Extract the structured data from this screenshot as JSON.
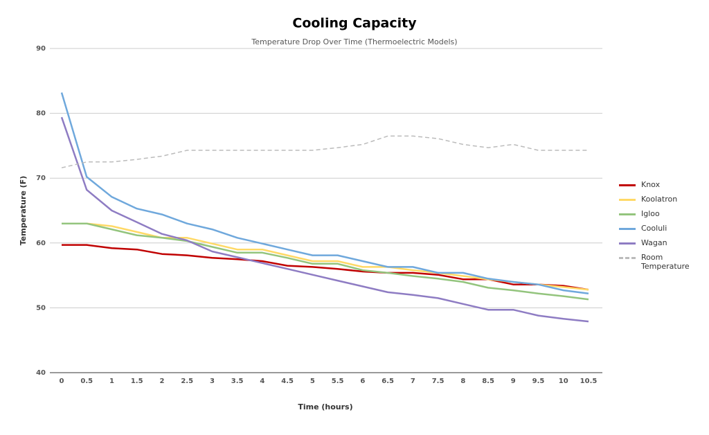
{
  "chart_data": {
    "type": "line",
    "title": "Cooling Capacity",
    "subtitle": "Temperature Drop Over Time  (Thermoelectric Models)",
    "x_label": "Time (hours)",
    "y_label": "Temperature (F)",
    "categories": [
      "0",
      "0.5",
      "1",
      "1.5",
      "2",
      "2.5",
      "3",
      "3.5",
      "4",
      "4.5",
      "5",
      "5.5",
      "6",
      "6.5",
      "7",
      "7.5",
      "8",
      "8.5",
      "9",
      "9.5",
      "10",
      "10.5"
    ],
    "ylim": [
      40,
      90
    ],
    "yticks": [
      40,
      50,
      60,
      70,
      80,
      90
    ],
    "grid": true,
    "legend": "right",
    "series": [
      {
        "name": "Knox",
        "color": "#c00000",
        "dashed": false,
        "values": [
          59.7,
          59.7,
          59.2,
          59.0,
          58.3,
          58.1,
          57.7,
          57.5,
          57.2,
          56.5,
          56.3,
          56.0,
          55.6,
          55.4,
          55.4,
          55.1,
          54.4,
          54.4,
          53.6,
          53.6,
          53.4,
          52.8
        ]
      },
      {
        "name": "Koolatron",
        "color": "#ffd966",
        "dashed": false,
        "values": [
          63.0,
          63.0,
          62.6,
          61.7,
          60.8,
          60.8,
          59.9,
          59.0,
          59.0,
          58.1,
          57.2,
          57.2,
          56.3,
          56.3,
          55.8,
          55.4,
          54.9,
          54.4,
          54.0,
          53.6,
          53.2,
          52.8
        ]
      },
      {
        "name": "Igloo",
        "color": "#93c47d",
        "dashed": false,
        "values": [
          63.0,
          63.0,
          62.1,
          61.2,
          60.8,
          60.3,
          59.4,
          58.5,
          58.5,
          57.7,
          56.8,
          56.8,
          55.8,
          55.4,
          54.9,
          54.5,
          54.0,
          53.1,
          52.7,
          52.2,
          51.8,
          51.3
        ]
      },
      {
        "name": "Cooluli",
        "color": "#6fa8dc",
        "dashed": false,
        "values": [
          83.2,
          70.2,
          67.1,
          65.3,
          64.4,
          63.0,
          62.1,
          60.8,
          59.9,
          59.0,
          58.1,
          58.1,
          57.2,
          56.3,
          56.3,
          55.4,
          55.4,
          54.5,
          54.0,
          53.6,
          52.7,
          52.2
        ]
      },
      {
        "name": "Wagan",
        "color": "#8e7cc3",
        "dashed": false,
        "values": [
          79.4,
          68.2,
          65.0,
          63.2,
          61.4,
          60.4,
          58.7,
          57.8,
          56.9,
          56.0,
          55.1,
          54.2,
          53.3,
          52.4,
          52.0,
          51.5,
          50.6,
          49.7,
          49.7,
          48.8,
          48.3,
          47.9
        ]
      },
      {
        "name": "Room Temperature",
        "color": "#bbbbbb",
        "dashed": true,
        "values": [
          71.6,
          72.5,
          72.5,
          72.9,
          73.4,
          74.3,
          74.3,
          74.3,
          74.3,
          74.3,
          74.3,
          74.7,
          75.2,
          76.5,
          76.5,
          76.1,
          75.2,
          74.7,
          75.2,
          74.3,
          74.3,
          74.3
        ]
      }
    ]
  }
}
